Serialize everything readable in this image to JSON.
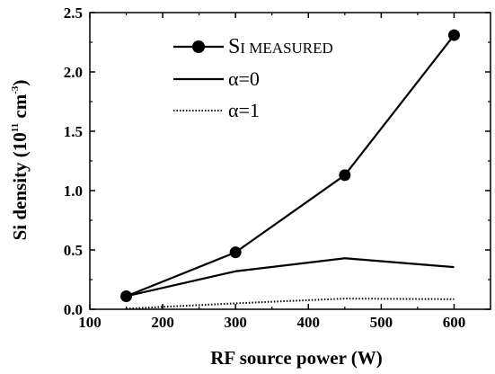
{
  "chart_data": {
    "type": "line",
    "title": "",
    "xlabel": "RF source power (W)",
    "ylabel_parts": {
      "main": "Si density (10",
      "sup1": "11",
      "mid": " cm",
      "sup2": "-3",
      "end": ")"
    },
    "xlim": [
      100,
      650
    ],
    "ylim": [
      0.0,
      2.5
    ],
    "xticks": [
      100,
      200,
      300,
      400,
      500,
      600
    ],
    "yticks": [
      0.0,
      0.5,
      1.0,
      1.5,
      2.0,
      2.5
    ],
    "xtick_labels": [
      "100",
      "200",
      "300",
      "400",
      "500",
      "600"
    ],
    "ytick_labels": [
      "0.0",
      "0.5",
      "1.0",
      "1.5",
      "2.0",
      "2.5"
    ],
    "grid": false,
    "legend_position": "top-center",
    "series": [
      {
        "name": "SI MEASURED",
        "label_parts": [
          "S",
          "I",
          " M",
          "EASURED"
        ],
        "style": "solid-marker",
        "color": "#000000",
        "x": [
          150,
          300,
          450,
          600
        ],
        "y": [
          0.11,
          0.48,
          1.13,
          2.31
        ]
      },
      {
        "name": "α=0",
        "style": "solid",
        "color": "#000000",
        "x": [
          150,
          300,
          450,
          600
        ],
        "y": [
          0.11,
          0.32,
          0.43,
          0.355
        ]
      },
      {
        "name": "α=1",
        "style": "dotted",
        "color": "#000000",
        "x": [
          150,
          300,
          450,
          600
        ],
        "y": [
          0.005,
          0.05,
          0.09,
          0.085
        ]
      }
    ]
  }
}
